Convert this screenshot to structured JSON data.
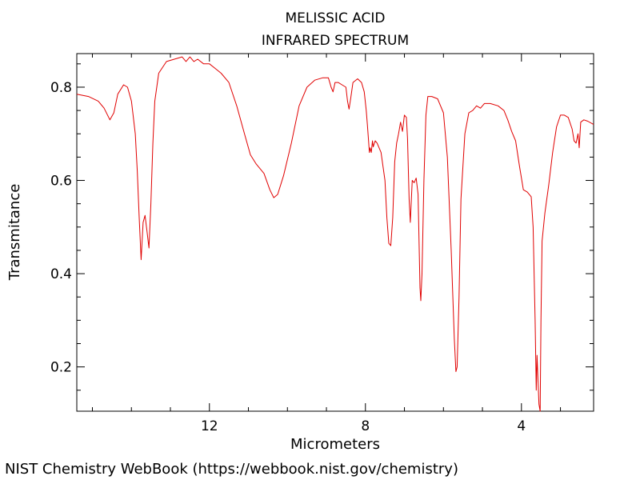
{
  "chart_data": {
    "type": "line",
    "title_lines": [
      "MELISSIC ACID",
      "INFRARED SPECTRUM"
    ],
    "xlabel": "Micrometers",
    "ylabel": "Transmitance",
    "x_reversed": true,
    "xlim": [
      15.4,
      2.15
    ],
    "ylim": [
      0.105,
      0.872
    ],
    "x_ticks": [
      12,
      8,
      4
    ],
    "x_minor_ticks": [
      15,
      14,
      13,
      11,
      10,
      9,
      7,
      6,
      5,
      3
    ],
    "y_ticks": [
      0.2,
      0.4,
      0.6,
      0.8
    ],
    "y_minor_ticks": [
      0.15,
      0.25,
      0.3,
      0.35,
      0.45,
      0.5,
      0.55,
      0.65,
      0.7,
      0.75,
      0.85
    ],
    "grid": false,
    "series": [
      {
        "color": "#e00000",
        "points": [
          [
            15.4,
            0.785
          ],
          [
            15.1,
            0.78
          ],
          [
            14.85,
            0.77
          ],
          [
            14.7,
            0.755
          ],
          [
            14.55,
            0.73
          ],
          [
            14.45,
            0.745
          ],
          [
            14.35,
            0.785
          ],
          [
            14.2,
            0.805
          ],
          [
            14.1,
            0.8
          ],
          [
            14.0,
            0.77
          ],
          [
            13.9,
            0.7
          ],
          [
            13.85,
            0.62
          ],
          [
            13.8,
            0.52
          ],
          [
            13.75,
            0.43
          ],
          [
            13.7,
            0.51
          ],
          [
            13.65,
            0.525
          ],
          [
            13.6,
            0.49
          ],
          [
            13.55,
            0.455
          ],
          [
            13.5,
            0.55
          ],
          [
            13.45,
            0.68
          ],
          [
            13.4,
            0.77
          ],
          [
            13.3,
            0.83
          ],
          [
            13.1,
            0.855
          ],
          [
            12.9,
            0.86
          ],
          [
            12.7,
            0.865
          ],
          [
            12.6,
            0.855
          ],
          [
            12.5,
            0.865
          ],
          [
            12.4,
            0.855
          ],
          [
            12.3,
            0.86
          ],
          [
            12.15,
            0.85
          ],
          [
            12.0,
            0.85
          ],
          [
            11.85,
            0.84
          ],
          [
            11.7,
            0.83
          ],
          [
            11.5,
            0.81
          ],
          [
            11.3,
            0.76
          ],
          [
            11.1,
            0.7
          ],
          [
            10.95,
            0.655
          ],
          [
            10.8,
            0.635
          ],
          [
            10.6,
            0.615
          ],
          [
            10.45,
            0.58
          ],
          [
            10.35,
            0.563
          ],
          [
            10.25,
            0.57
          ],
          [
            10.1,
            0.61
          ],
          [
            9.9,
            0.68
          ],
          [
            9.7,
            0.76
          ],
          [
            9.5,
            0.8
          ],
          [
            9.3,
            0.815
          ],
          [
            9.1,
            0.82
          ],
          [
            8.95,
            0.82
          ],
          [
            8.88,
            0.8
          ],
          [
            8.83,
            0.79
          ],
          [
            8.78,
            0.81
          ],
          [
            8.7,
            0.81
          ],
          [
            8.6,
            0.805
          ],
          [
            8.5,
            0.8
          ],
          [
            8.46,
            0.77
          ],
          [
            8.42,
            0.753
          ],
          [
            8.38,
            0.775
          ],
          [
            8.32,
            0.81
          ],
          [
            8.2,
            0.818
          ],
          [
            8.1,
            0.81
          ],
          [
            8.03,
            0.79
          ],
          [
            7.98,
            0.75
          ],
          [
            7.95,
            0.72
          ],
          [
            7.92,
            0.685
          ],
          [
            7.9,
            0.66
          ],
          [
            7.88,
            0.67
          ],
          [
            7.85,
            0.66
          ],
          [
            7.82,
            0.685
          ],
          [
            7.8,
            0.672
          ],
          [
            7.75,
            0.685
          ],
          [
            7.7,
            0.68
          ],
          [
            7.6,
            0.66
          ],
          [
            7.5,
            0.6
          ],
          [
            7.45,
            0.52
          ],
          [
            7.4,
            0.465
          ],
          [
            7.35,
            0.46
          ],
          [
            7.3,
            0.52
          ],
          [
            7.25,
            0.64
          ],
          [
            7.2,
            0.68
          ],
          [
            7.15,
            0.7
          ],
          [
            7.1,
            0.725
          ],
          [
            7.05,
            0.705
          ],
          [
            7.0,
            0.74
          ],
          [
            6.95,
            0.735
          ],
          [
            6.92,
            0.69
          ],
          [
            6.88,
            0.56
          ],
          [
            6.85,
            0.51
          ],
          [
            6.8,
            0.6
          ],
          [
            6.75,
            0.595
          ],
          [
            6.7,
            0.605
          ],
          [
            6.65,
            0.57
          ],
          [
            6.6,
            0.37
          ],
          [
            6.58,
            0.342
          ],
          [
            6.55,
            0.4
          ],
          [
            6.5,
            0.6
          ],
          [
            6.45,
            0.74
          ],
          [
            6.4,
            0.78
          ],
          [
            6.3,
            0.78
          ],
          [
            6.15,
            0.775
          ],
          [
            6.0,
            0.745
          ],
          [
            5.9,
            0.65
          ],
          [
            5.8,
            0.45
          ],
          [
            5.72,
            0.26
          ],
          [
            5.68,
            0.19
          ],
          [
            5.65,
            0.2
          ],
          [
            5.6,
            0.35
          ],
          [
            5.55,
            0.56
          ],
          [
            5.45,
            0.7
          ],
          [
            5.35,
            0.745
          ],
          [
            5.25,
            0.75
          ],
          [
            5.15,
            0.76
          ],
          [
            5.05,
            0.755
          ],
          [
            4.95,
            0.765
          ],
          [
            4.8,
            0.765
          ],
          [
            4.6,
            0.76
          ],
          [
            4.45,
            0.75
          ],
          [
            4.35,
            0.73
          ],
          [
            4.25,
            0.705
          ],
          [
            4.15,
            0.685
          ],
          [
            4.05,
            0.63
          ],
          [
            3.95,
            0.58
          ],
          [
            3.85,
            0.575
          ],
          [
            3.75,
            0.565
          ],
          [
            3.7,
            0.5
          ],
          [
            3.65,
            0.3
          ],
          [
            3.62,
            0.15
          ],
          [
            3.6,
            0.225
          ],
          [
            3.58,
            0.18
          ],
          [
            3.55,
            0.12
          ],
          [
            3.52,
            0.105
          ],
          [
            3.5,
            0.3
          ],
          [
            3.47,
            0.47
          ],
          [
            3.4,
            0.53
          ],
          [
            3.3,
            0.59
          ],
          [
            3.2,
            0.66
          ],
          [
            3.1,
            0.715
          ],
          [
            3.0,
            0.74
          ],
          [
            2.9,
            0.74
          ],
          [
            2.8,
            0.735
          ],
          [
            2.7,
            0.71
          ],
          [
            2.65,
            0.685
          ],
          [
            2.6,
            0.68
          ],
          [
            2.55,
            0.7
          ],
          [
            2.52,
            0.67
          ],
          [
            2.48,
            0.725
          ],
          [
            2.4,
            0.73
          ],
          [
            2.3,
            0.727
          ],
          [
            2.15,
            0.72
          ]
        ]
      }
    ]
  },
  "credit": "NIST Chemistry WebBook (https://webbook.nist.gov/chemistry)"
}
